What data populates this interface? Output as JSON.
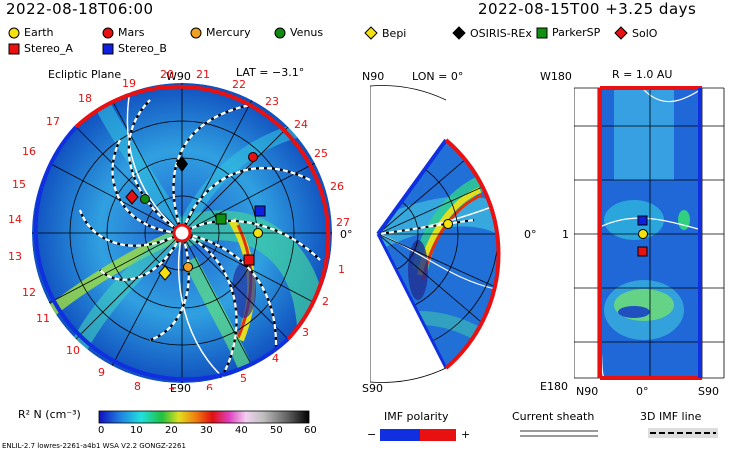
{
  "header": {
    "left_time": "2022-08-18T06:00",
    "right_time": "2022-08-15T00 +3.25 days"
  },
  "legend": {
    "items": [
      {
        "label": "Earth",
        "shape": "circle",
        "color": "#f5e010"
      },
      {
        "label": "Mars",
        "shape": "circle",
        "color": "#e81010"
      },
      {
        "label": "Mercury",
        "shape": "circle",
        "color": "#f0a020"
      },
      {
        "label": "Venus",
        "shape": "circle",
        "color": "#108a10"
      },
      {
        "label": "Bepi",
        "shape": "diamond",
        "color": "#f5e010"
      },
      {
        "label": "OSIRIS-REx",
        "shape": "diamond",
        "color": "#000000"
      },
      {
        "label": "ParkerSP",
        "shape": "square",
        "color": "#109010"
      },
      {
        "label": "SolO",
        "shape": "diamond",
        "color": "#e81010"
      },
      {
        "label": "Stereo_A",
        "shape": "square",
        "color": "#e81010"
      },
      {
        "label": "Stereo_B",
        "shape": "square",
        "color": "#1020e0"
      }
    ]
  },
  "panel_ecliptic": {
    "title": "Ecliptic Plane",
    "lat": "LAT = −3.1°",
    "top_label": "W90",
    "bottom_label": "E90",
    "right_label": "0°",
    "carrington_labels": [
      "19",
      "20",
      "21",
      "22",
      "23",
      "24",
      "25",
      "26",
      "27",
      "1",
      "2",
      "3",
      "4",
      "5",
      "6",
      "7",
      "8",
      "9",
      "10",
      "11",
      "12",
      "13",
      "14",
      "15",
      "16",
      "17",
      "18"
    ]
  },
  "panel_meridional": {
    "top_left": "N90",
    "lon": "LON = 0°",
    "right_label": "0°",
    "bottom_left": "S90"
  },
  "panel_shell": {
    "top_left": "W180",
    "title": "R = 1.0 AU",
    "mid_left": "1",
    "bottom_left": "E180",
    "bottom_n": "N90",
    "bottom_mid": "0°",
    "bottom_right": "S90"
  },
  "colorbar": {
    "label": "R² N (cm⁻³)",
    "ticks": [
      "0",
      "10",
      "20",
      "30",
      "40",
      "50",
      "60"
    ]
  },
  "imf": {
    "title": "IMF polarity",
    "minus": "−",
    "plus": "+",
    "sheath_title": "Current sheath",
    "line_title": "3D IMF line"
  },
  "footer": "ENLIL-2.7 lowres-2261-a4b1 WSA V2.2 GONGZ-2261"
}
